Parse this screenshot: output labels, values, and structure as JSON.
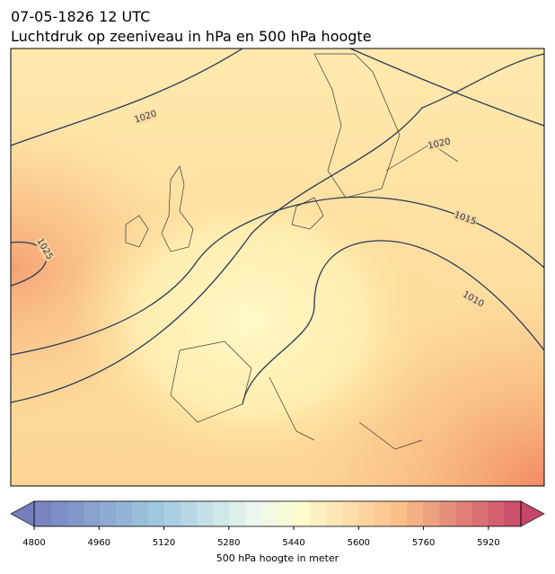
{
  "header": {
    "date": "07-05-1826 12 UTC",
    "title": "Luchtdruk op zeeniveau in hPa en 500 hPa hoogte"
  },
  "isobars": [
    {
      "label": 1020
    },
    {
      "label": 1020
    },
    {
      "label": 1025
    },
    {
      "label": 1015
    },
    {
      "label": 1010
    }
  ],
  "colorbar": {
    "label": "500 hPa hoogte in meter",
    "clim": [
      4800,
      6000
    ],
    "ticks": [
      4800,
      4960,
      5120,
      5280,
      5440,
      5600,
      5760,
      5920
    ]
  }
}
